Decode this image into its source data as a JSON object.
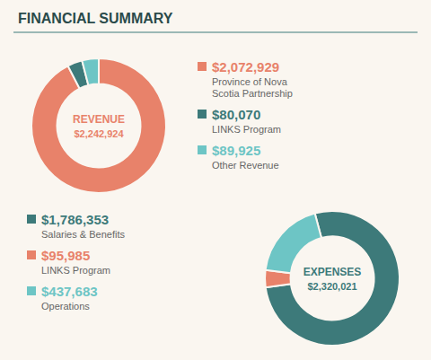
{
  "title": "FINANCIAL SUMMARY",
  "chart_data": [
    {
      "type": "donut",
      "title": "REVENUE",
      "subtitle": "$2,242,924",
      "categories": [
        "Province of Nova\nScotia Partnership",
        "LINKS Program",
        "Other Revenue"
      ],
      "values": [
        2072929,
        80070,
        89925
      ],
      "value_labels": [
        "$2,072,929",
        "$80,070",
        "$89,925"
      ],
      "colors": [
        "#e8826a",
        "#3d7a7a",
        "#6dc5c5"
      ],
      "data_labels": true
    },
    {
      "type": "donut",
      "title": "EXPENSES",
      "subtitle": "$2,320,021",
      "categories": [
        "Salaries & Benefits",
        "LINKS Program",
        "Operations"
      ],
      "values": [
        1786353,
        95985,
        437683
      ],
      "value_labels": [
        "$1,786,353",
        "$95,985",
        "$437,683"
      ],
      "colors": [
        "#3d7a7a",
        "#e8826a",
        "#6dc5c5"
      ],
      "data_labels": true
    }
  ]
}
